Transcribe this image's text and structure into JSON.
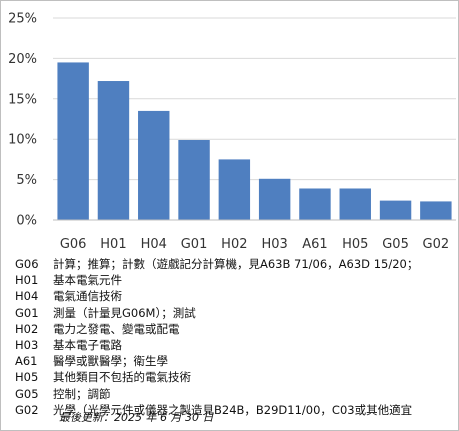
{
  "chart_data": {
    "type": "bar",
    "categories": [
      "G06",
      "H01",
      "H04",
      "G01",
      "H02",
      "H03",
      "A61",
      "H05",
      "G05",
      "G02"
    ],
    "values": [
      19.5,
      17.2,
      13.5,
      9.9,
      7.5,
      5.1,
      3.9,
      3.9,
      2.4,
      2.3
    ],
    "title": "",
    "xlabel": "",
    "ylabel": "",
    "ylim": [
      0,
      25
    ],
    "yticks": [
      "0%",
      "5%",
      "10%",
      "15%",
      "20%",
      "25%"
    ],
    "grid": true,
    "bar_color": "#4f7fc0"
  },
  "legend": [
    {
      "code": "G06",
      "desc": "計算；推算；計數（遊戲記分計算機，見A63B 71/06，A63D 15/20；"
    },
    {
      "code": "H01",
      "desc": "基本電氣元件"
    },
    {
      "code": "H04",
      "desc": "電氣通信技術"
    },
    {
      "code": "G01",
      "desc": "測量（計量見G06M）；測試"
    },
    {
      "code": "H02",
      "desc": "電力之發電、變電或配電"
    },
    {
      "code": "H03",
      "desc": "基本電子電路"
    },
    {
      "code": "A61",
      "desc": "醫學或獸醫學；衛生學"
    },
    {
      "code": "H05",
      "desc": "其他類目不包括的電氣技術"
    },
    {
      "code": "G05",
      "desc": "控制；調節"
    },
    {
      "code": "G02",
      "desc": "光學（光學元件或儀器之製造見B24B，B29D11/00，C03或其他適宜"
    }
  ],
  "footer": "最後更新：2025 年 6 月 30 日"
}
